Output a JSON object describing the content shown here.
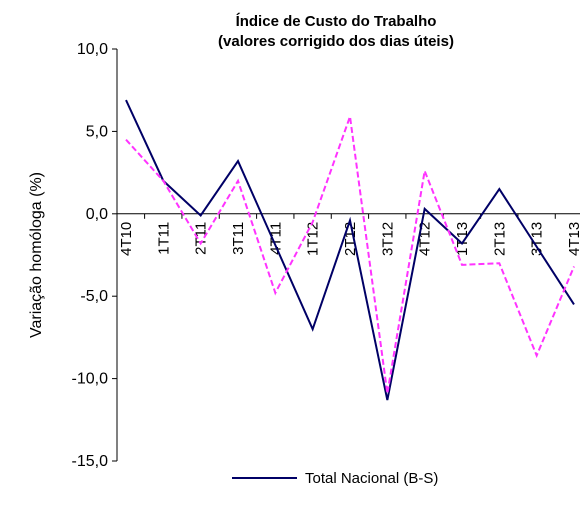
{
  "chart_data": {
    "type": "line",
    "title": "Índice de Custo do Trabalho",
    "subtitle": "(valores corrigido dos dias úteis)",
    "y_label": "Variação homóloga (%)",
    "categories": [
      "4T10",
      "1T11",
      "2T11",
      "3T11",
      "4T11",
      "1T12",
      "2T12",
      "3T12",
      "4T12",
      "1T13",
      "2T13",
      "3T13",
      "4T13"
    ],
    "series": [
      {
        "name": "Total Nacional (B-S)",
        "color": "#000066",
        "dash": "solid",
        "values": [
          6.9,
          2.0,
          -0.1,
          3.2,
          -1.9,
          -7.0,
          -0.4,
          -11.3,
          0.3,
          -1.8,
          1.5,
          -2.0,
          -5.5
        ]
      },
      {
        "color": "#ff33ff",
        "dash": "dashed",
        "values": [
          4.5,
          2.0,
          -1.8,
          2.0,
          -4.8,
          -0.5,
          5.9,
          -10.9,
          2.6,
          -3.1,
          -3.0,
          -8.6,
          -3.2
        ]
      }
    ],
    "ylim": [
      -15,
      10
    ],
    "yticks": [
      {
        "value": -15,
        "label": "-15,0"
      },
      {
        "value": -10,
        "label": "-10,0"
      },
      {
        "value": -5,
        "label": "-5,0"
      },
      {
        "value": 0,
        "label": "0,0"
      },
      {
        "value": 5,
        "label": "5,0"
      },
      {
        "value": 10,
        "label": "10,0"
      }
    ],
    "legend": "bottom"
  }
}
